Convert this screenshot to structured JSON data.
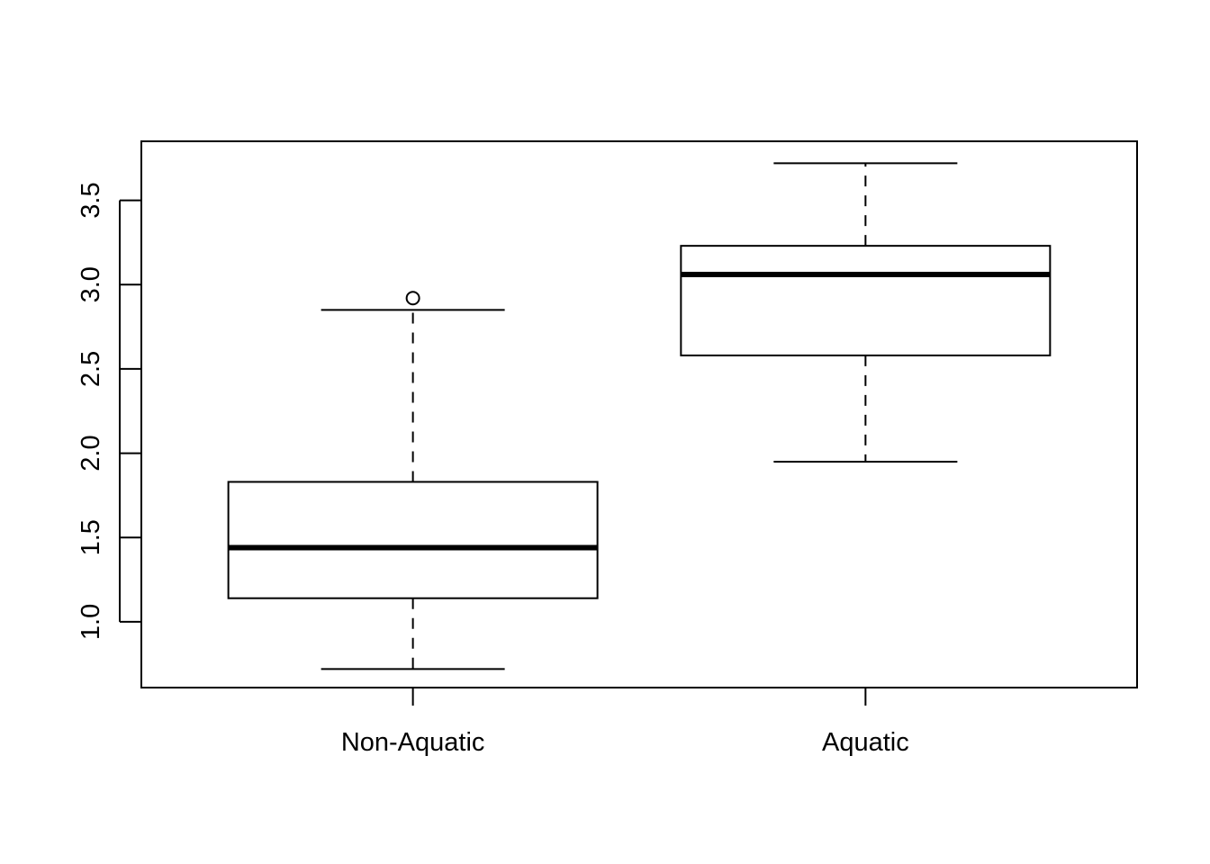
{
  "chart_data": {
    "type": "boxplot",
    "title": "",
    "xlabel": "",
    "ylabel": "",
    "categories": [
      "Non-Aquatic",
      "Aquatic"
    ],
    "ylim": [
      0.61,
      3.85
    ],
    "y_ticks": [
      1.0,
      1.5,
      2.0,
      2.5,
      3.0,
      3.5
    ],
    "y_tick_labels": [
      "1.0",
      "1.5",
      "2.0",
      "2.5",
      "3.0",
      "3.5"
    ],
    "grid": false,
    "legend": "none",
    "boxes": [
      {
        "category": "Non-Aquatic",
        "whisker_low": 0.72,
        "q1": 1.14,
        "median": 1.44,
        "q3": 1.83,
        "whisker_high": 2.85,
        "outliers": [
          2.92
        ]
      },
      {
        "category": "Aquatic",
        "whisker_low": 1.95,
        "q1": 2.58,
        "median": 3.06,
        "q3": 3.23,
        "whisker_high": 3.72,
        "outliers": []
      }
    ],
    "colors": {
      "stroke": "#000000",
      "fill": "#ffffff",
      "background": "#ffffff"
    }
  }
}
